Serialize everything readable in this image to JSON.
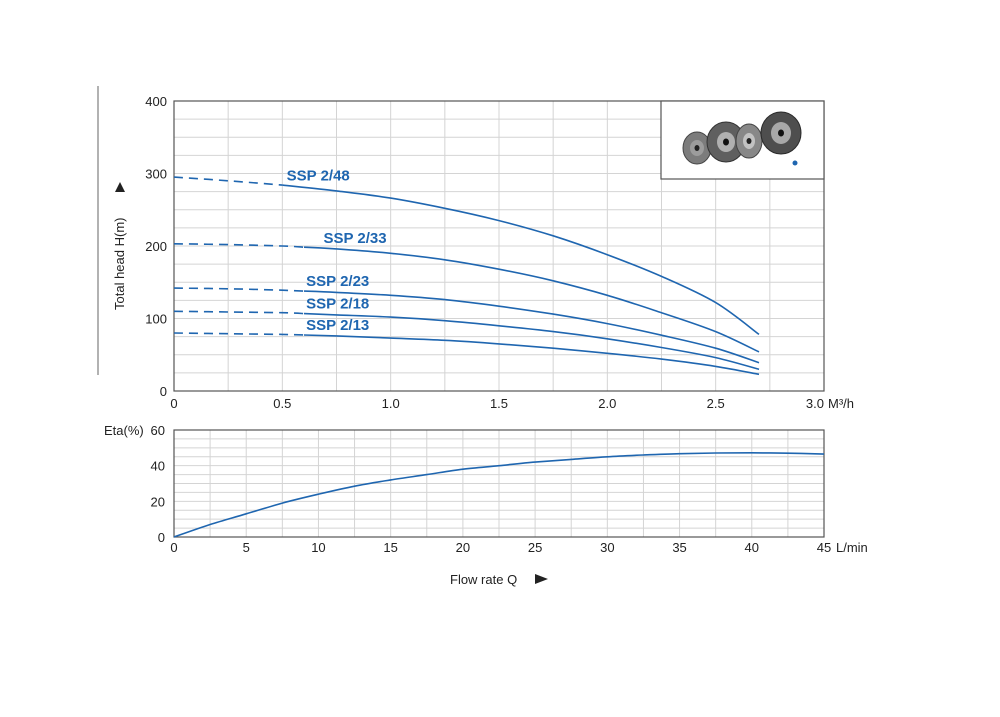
{
  "chart_data": [
    {
      "type": "line",
      "name_hint": "head-curves",
      "ylabel": "Total head H(m)",
      "x_unit": "M³/h",
      "xlim": [
        0,
        3.0
      ],
      "ylim": [
        0,
        400
      ],
      "x_ticks": [
        "0",
        "0.5",
        "1.0",
        "1.5",
        "2.0",
        "2.5",
        "3.0"
      ],
      "y_ticks": [
        "0",
        "100",
        "200",
        "300",
        "400"
      ],
      "grid": true,
      "series": [
        {
          "name": "SSP 2/48",
          "dashed_to_x": 0.5,
          "points": [
            [
              0,
              295
            ],
            [
              0.25,
              290
            ],
            [
              0.5,
              284
            ],
            [
              0.75,
              276
            ],
            [
              1.0,
              266
            ],
            [
              1.25,
              252
            ],
            [
              1.5,
              235
            ],
            [
              1.75,
              214
            ],
            [
              2.0,
              188
            ],
            [
              2.25,
              158
            ],
            [
              2.5,
              122
            ],
            [
              2.7,
              78
            ]
          ]
        },
        {
          "name": "SSP 2/33",
          "dashed_to_x": 0.6,
          "points": [
            [
              0,
              203
            ],
            [
              0.25,
              202
            ],
            [
              0.5,
              200
            ],
            [
              0.75,
              196
            ],
            [
              1.0,
              190
            ],
            [
              1.25,
              181
            ],
            [
              1.5,
              168
            ],
            [
              1.75,
              152
            ],
            [
              2.0,
              132
            ],
            [
              2.25,
              108
            ],
            [
              2.5,
              82
            ],
            [
              2.7,
              54
            ]
          ]
        },
        {
          "name": "SSP 2/23",
          "dashed_to_x": 0.6,
          "points": [
            [
              0,
              142
            ],
            [
              0.25,
              141
            ],
            [
              0.5,
              139
            ],
            [
              0.75,
              136
            ],
            [
              1.0,
              132
            ],
            [
              1.25,
              126
            ],
            [
              1.5,
              117
            ],
            [
              1.75,
              106
            ],
            [
              2.0,
              93
            ],
            [
              2.25,
              77
            ],
            [
              2.5,
              59
            ],
            [
              2.7,
              39
            ]
          ]
        },
        {
          "name": "SSP 2/18",
          "dashed_to_x": 0.6,
          "points": [
            [
              0,
              110
            ],
            [
              0.25,
              109
            ],
            [
              0.5,
              108
            ],
            [
              0.75,
              105
            ],
            [
              1.0,
              102
            ],
            [
              1.25,
              97
            ],
            [
              1.5,
              90
            ],
            [
              1.75,
              82
            ],
            [
              2.0,
              72
            ],
            [
              2.25,
              60
            ],
            [
              2.5,
              46
            ],
            [
              2.7,
              30
            ]
          ]
        },
        {
          "name": "SSP 2/13",
          "dashed_to_x": 0.6,
          "points": [
            [
              0,
              80
            ],
            [
              0.25,
              79
            ],
            [
              0.5,
              78
            ],
            [
              0.75,
              76
            ],
            [
              1.0,
              73
            ],
            [
              1.25,
              70
            ],
            [
              1.5,
              65
            ],
            [
              1.75,
              59
            ],
            [
              2.0,
              52
            ],
            [
              2.25,
              44
            ],
            [
              2.5,
              34
            ],
            [
              2.7,
              23
            ]
          ]
        }
      ]
    },
    {
      "type": "line",
      "name_hint": "efficiency-curve",
      "ylabel": "Eta(%)",
      "xlabel": "Flow rate Q",
      "x_unit": "L/min",
      "xlim": [
        0,
        45
      ],
      "ylim": [
        0,
        60
      ],
      "x_ticks": [
        "0",
        "5",
        "10",
        "15",
        "20",
        "25",
        "30",
        "35",
        "40",
        "45"
      ],
      "y_ticks": [
        "0",
        "20",
        "40",
        "60"
      ],
      "grid": true,
      "series": [
        {
          "points": [
            [
              0,
              0
            ],
            [
              2.5,
              7
            ],
            [
              5,
              13
            ],
            [
              7.5,
              19
            ],
            [
              10,
              24
            ],
            [
              12.5,
              28.5
            ],
            [
              15,
              32
            ],
            [
              17.5,
              35
            ],
            [
              20,
              38
            ],
            [
              22.5,
              40
            ],
            [
              25,
              42
            ],
            [
              27.5,
              43.5
            ],
            [
              30,
              45
            ],
            [
              32.5,
              46
            ],
            [
              35,
              46.7
            ],
            [
              37.5,
              47.1
            ],
            [
              40,
              47.2
            ],
            [
              42.5,
              47
            ],
            [
              45,
              46.5
            ]
          ]
        }
      ]
    }
  ],
  "colors": {
    "curve": "#1f66b0",
    "grid": "#d4d4d4",
    "frame": "#555555"
  },
  "inset_image": {
    "icon": "impeller-parts-photo"
  }
}
